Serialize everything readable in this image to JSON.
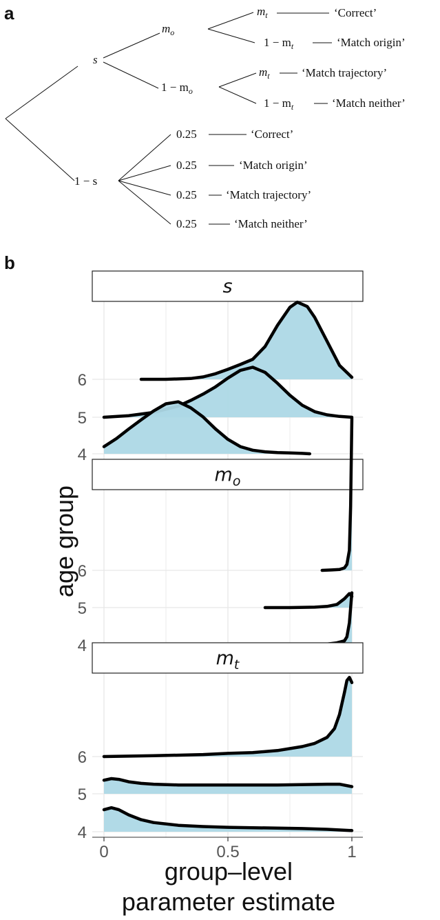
{
  "panels": {
    "a": "a",
    "b": "b"
  },
  "tree": {
    "nodes": {
      "s": "s",
      "one_minus_s": "1 − s",
      "m_o": "m",
      "m_o_sub": "o",
      "one_minus_m_o": "1 − m",
      "one_minus_m_o_sub": "o",
      "m_t_1": "m",
      "m_t_1_sub": "t",
      "one_minus_m_t_1": "1 − m",
      "one_minus_m_t_1_sub": "t",
      "m_t_2": "m",
      "m_t_2_sub": "t",
      "one_minus_m_t_2": "1 − m",
      "one_minus_m_t_2_sub": "t",
      "p1": "0.25",
      "p2": "0.25",
      "p3": "0.25",
      "p4": "0.25"
    },
    "outcomes": {
      "o1": "‘Correct’",
      "o2": "‘Match origin’",
      "o3": "‘Match trajectory’",
      "o4": "‘Match neither’",
      "o5": "‘Correct’",
      "o6": "‘Match origin’",
      "o7": "‘Match trajectory’",
      "o8": "‘Match neither’"
    }
  },
  "chart_data": {
    "type": "ridgeline",
    "xlabel": [
      "group–level",
      "parameter estimate"
    ],
    "ylabel": "age group",
    "xlim": [
      0,
      1
    ],
    "x_ticks": [
      {
        "value": 0,
        "label": "0"
      },
      {
        "value": 0.5,
        "label": "0.5"
      },
      {
        "value": 1,
        "label": "1"
      }
    ],
    "y_ticks": [
      "4",
      "5",
      "6"
    ],
    "grid": true,
    "fill_color": "#add8e6",
    "facets": [
      {
        "label": "s",
        "label_sub": "",
        "series": [
          {
            "group": "4",
            "x": [
              0.0,
              0.05,
              0.1,
              0.15,
              0.2,
              0.25,
              0.3,
              0.35,
              0.4,
              0.45,
              0.5,
              0.55,
              0.6,
              0.65,
              0.7,
              0.75,
              0.8,
              0.83
            ],
            "density": [
              0.18,
              0.38,
              0.62,
              0.85,
              1.07,
              1.25,
              1.3,
              1.15,
              0.92,
              0.62,
              0.36,
              0.18,
              0.09,
              0.05,
              0.03,
              0.02,
              0.01,
              0.0
            ]
          },
          {
            "group": "5",
            "x": [
              0.0,
              0.1,
              0.2,
              0.3,
              0.35,
              0.4,
              0.45,
              0.5,
              0.55,
              0.6,
              0.65,
              0.7,
              0.75,
              0.8,
              0.85,
              0.9,
              0.95,
              1.0
            ],
            "density": [
              0.0,
              0.04,
              0.12,
              0.28,
              0.42,
              0.58,
              0.76,
              0.98,
              1.17,
              1.25,
              1.12,
              0.85,
              0.55,
              0.3,
              0.14,
              0.06,
              0.02,
              0.0
            ]
          },
          {
            "group": "6",
            "x": [
              0.15,
              0.25,
              0.35,
              0.4,
              0.45,
              0.5,
              0.55,
              0.6,
              0.65,
              0.7,
              0.75,
              0.78,
              0.82,
              0.85,
              0.9,
              0.95,
              1.0
            ],
            "density": [
              0.0,
              0.0,
              0.02,
              0.06,
              0.14,
              0.25,
              0.37,
              0.5,
              0.82,
              1.35,
              1.8,
              1.93,
              1.82,
              1.55,
              0.95,
              0.35,
              0.05
            ]
          }
        ]
      },
      {
        "label": "m",
        "label_sub": "o",
        "series": [
          {
            "group": "4",
            "x": [
              0.74,
              0.8,
              0.85,
              0.9,
              0.94,
              0.97,
              0.98,
              0.99,
              1.0
            ],
            "density": [
              0.0,
              0.0,
              0.01,
              0.02,
              0.05,
              0.1,
              0.2,
              0.55,
              1.3
            ]
          },
          {
            "group": "5",
            "x": [
              0.65,
              0.75,
              0.85,
              0.9,
              0.94,
              0.97,
              0.99,
              1.0
            ],
            "density": [
              0.0,
              0.0,
              0.01,
              0.03,
              0.08,
              0.22,
              0.35,
              0.28
            ]
          },
          {
            "group": "6",
            "x": [
              0.88,
              0.92,
              0.95,
              0.97,
              0.98,
              0.99,
              0.995,
              1.0
            ],
            "density": [
              0.0,
              0.01,
              0.02,
              0.06,
              0.15,
              0.5,
              1.6,
              3.8
            ]
          }
        ]
      },
      {
        "label": "m",
        "label_sub": "t",
        "series": [
          {
            "group": "4",
            "x": [
              0.0,
              0.03,
              0.06,
              0.1,
              0.15,
              0.2,
              0.3,
              0.4,
              0.5,
              0.6,
              0.7,
              0.8,
              0.9,
              1.0
            ],
            "density": [
              0.55,
              0.6,
              0.55,
              0.42,
              0.3,
              0.23,
              0.16,
              0.13,
              0.11,
              0.1,
              0.09,
              0.08,
              0.06,
              0.03
            ]
          },
          {
            "group": "5",
            "x": [
              0.0,
              0.03,
              0.06,
              0.1,
              0.15,
              0.2,
              0.3,
              0.5,
              0.7,
              0.9,
              0.95,
              1.0
            ],
            "density": [
              0.34,
              0.38,
              0.36,
              0.3,
              0.26,
              0.24,
              0.22,
              0.22,
              0.22,
              0.24,
              0.24,
              0.18
            ]
          },
          {
            "group": "6",
            "x": [
              0.0,
              0.2,
              0.4,
              0.5,
              0.6,
              0.7,
              0.8,
              0.85,
              0.9,
              0.93,
              0.95,
              0.97,
              0.98,
              0.99,
              1.0
            ],
            "density": [
              0.0,
              0.02,
              0.05,
              0.08,
              0.1,
              0.15,
              0.25,
              0.33,
              0.48,
              0.7,
              1.05,
              1.6,
              1.9,
              1.98,
              1.85
            ]
          }
        ]
      }
    ]
  }
}
